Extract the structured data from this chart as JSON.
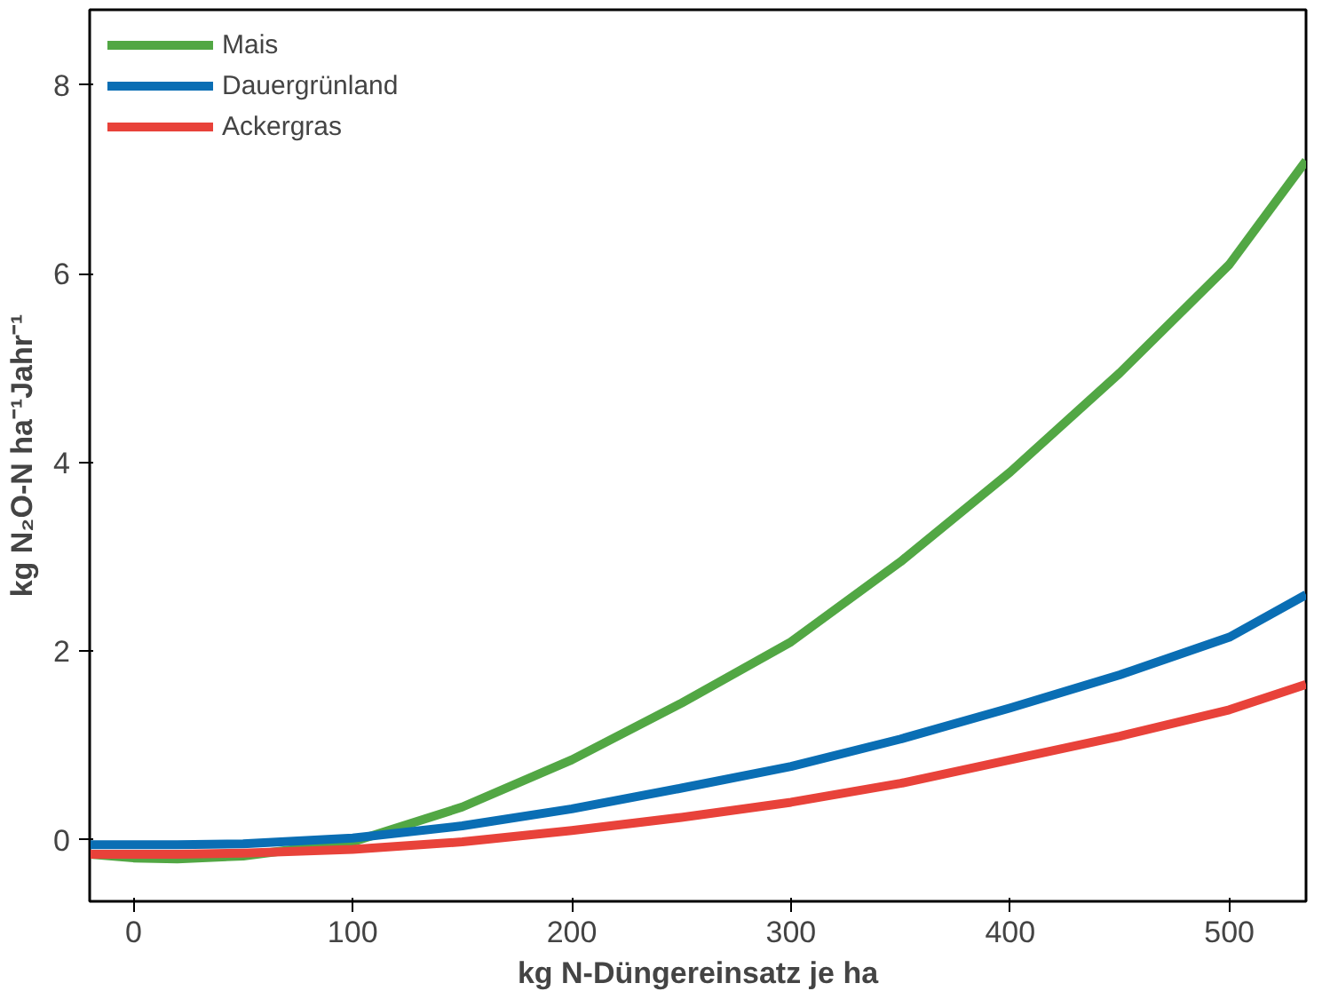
{
  "chart_data": {
    "type": "line",
    "xlabel": "kg N-Düngereinsatz je ha",
    "ylabel": "kg N₂O-N ha⁻¹Jahr⁻¹",
    "x": [
      -20,
      0,
      20,
      50,
      100,
      150,
      200,
      250,
      300,
      350,
      400,
      450,
      500,
      535
    ],
    "series": [
      {
        "name": "Mais",
        "color": "#52a744",
        "values": [
          -0.15,
          -0.19,
          -0.2,
          -0.17,
          -0.02,
          0.35,
          0.85,
          1.45,
          2.1,
          2.95,
          3.9,
          4.95,
          6.1,
          7.2
        ]
      },
      {
        "name": "Dauergrünland",
        "color": "#0a6eb4",
        "values": [
          -0.05,
          -0.05,
          -0.05,
          -0.04,
          0.02,
          0.15,
          0.33,
          0.55,
          0.78,
          1.07,
          1.4,
          1.75,
          2.15,
          2.6
        ]
      },
      {
        "name": "Ackergras",
        "color": "#e8423a",
        "values": [
          -0.15,
          -0.15,
          -0.15,
          -0.14,
          -0.1,
          -0.02,
          0.1,
          0.24,
          0.4,
          0.6,
          0.85,
          1.1,
          1.38,
          1.65
        ]
      }
    ],
    "xlim": [
      -20,
      535
    ],
    "ylim": [
      -0.65,
      8.8
    ],
    "xticks": [
      0,
      100,
      200,
      300,
      400,
      500
    ],
    "yticks": [
      0,
      2,
      4,
      6,
      8
    ],
    "grid": false,
    "legend": "top left",
    "marker": "none",
    "line_style": "solid"
  }
}
